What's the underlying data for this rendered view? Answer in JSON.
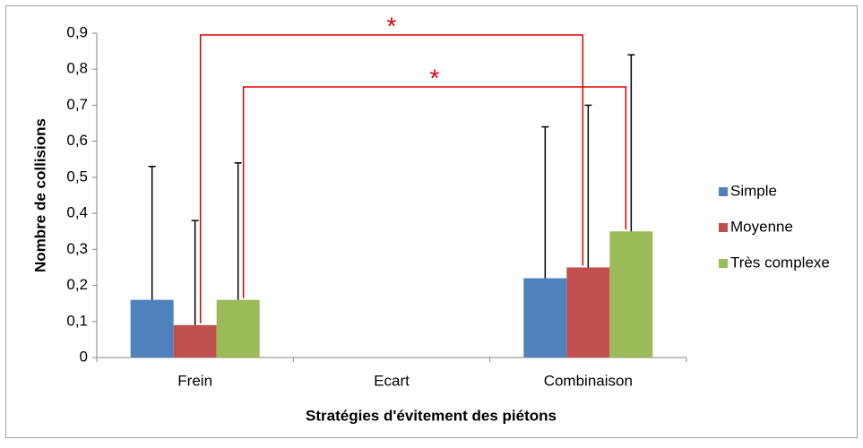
{
  "chart_data": {
    "type": "bar",
    "x_label": "Stratégies d'évitement des piétons",
    "y_label": "Nombre de collisions",
    "categories": [
      "Frein",
      "Ecart",
      "Combinaison"
    ],
    "series": [
      {
        "name": "Simple",
        "color": "#4f81bd",
        "values": [
          0.16,
          0,
          0.22
        ],
        "errors": [
          0.37,
          0,
          0.42
        ]
      },
      {
        "name": "Moyenne",
        "color": "#c0504d",
        "values": [
          0.09,
          0,
          0.25
        ],
        "errors": [
          0.29,
          0,
          0.45
        ]
      },
      {
        "name": "Très complexe",
        "color": "#9bbb59",
        "values": [
          0.16,
          0,
          0.35
        ],
        "errors": [
          0.38,
          0,
          0.49
        ]
      }
    ],
    "ylim": [
      0,
      0.9
    ],
    "yticks": [
      0,
      {
        "value": 0.1,
        "label": "0,1"
      },
      {
        "value": 0.2,
        "label": "0,2"
      },
      {
        "value": 0.3,
        "label": "0,3"
      },
      {
        "value": 0.4,
        "label": "0,4"
      },
      {
        "value": 0.5,
        "label": "0,5"
      },
      {
        "value": 0.6,
        "label": "0,6"
      },
      {
        "value": 0.7,
        "label": "0,7"
      },
      {
        "value": 0.8,
        "label": "0,8"
      },
      {
        "value": 0.9,
        "label": "0,9"
      }
    ],
    "annotations": [
      "*",
      "*"
    ],
    "legend": "right"
  }
}
